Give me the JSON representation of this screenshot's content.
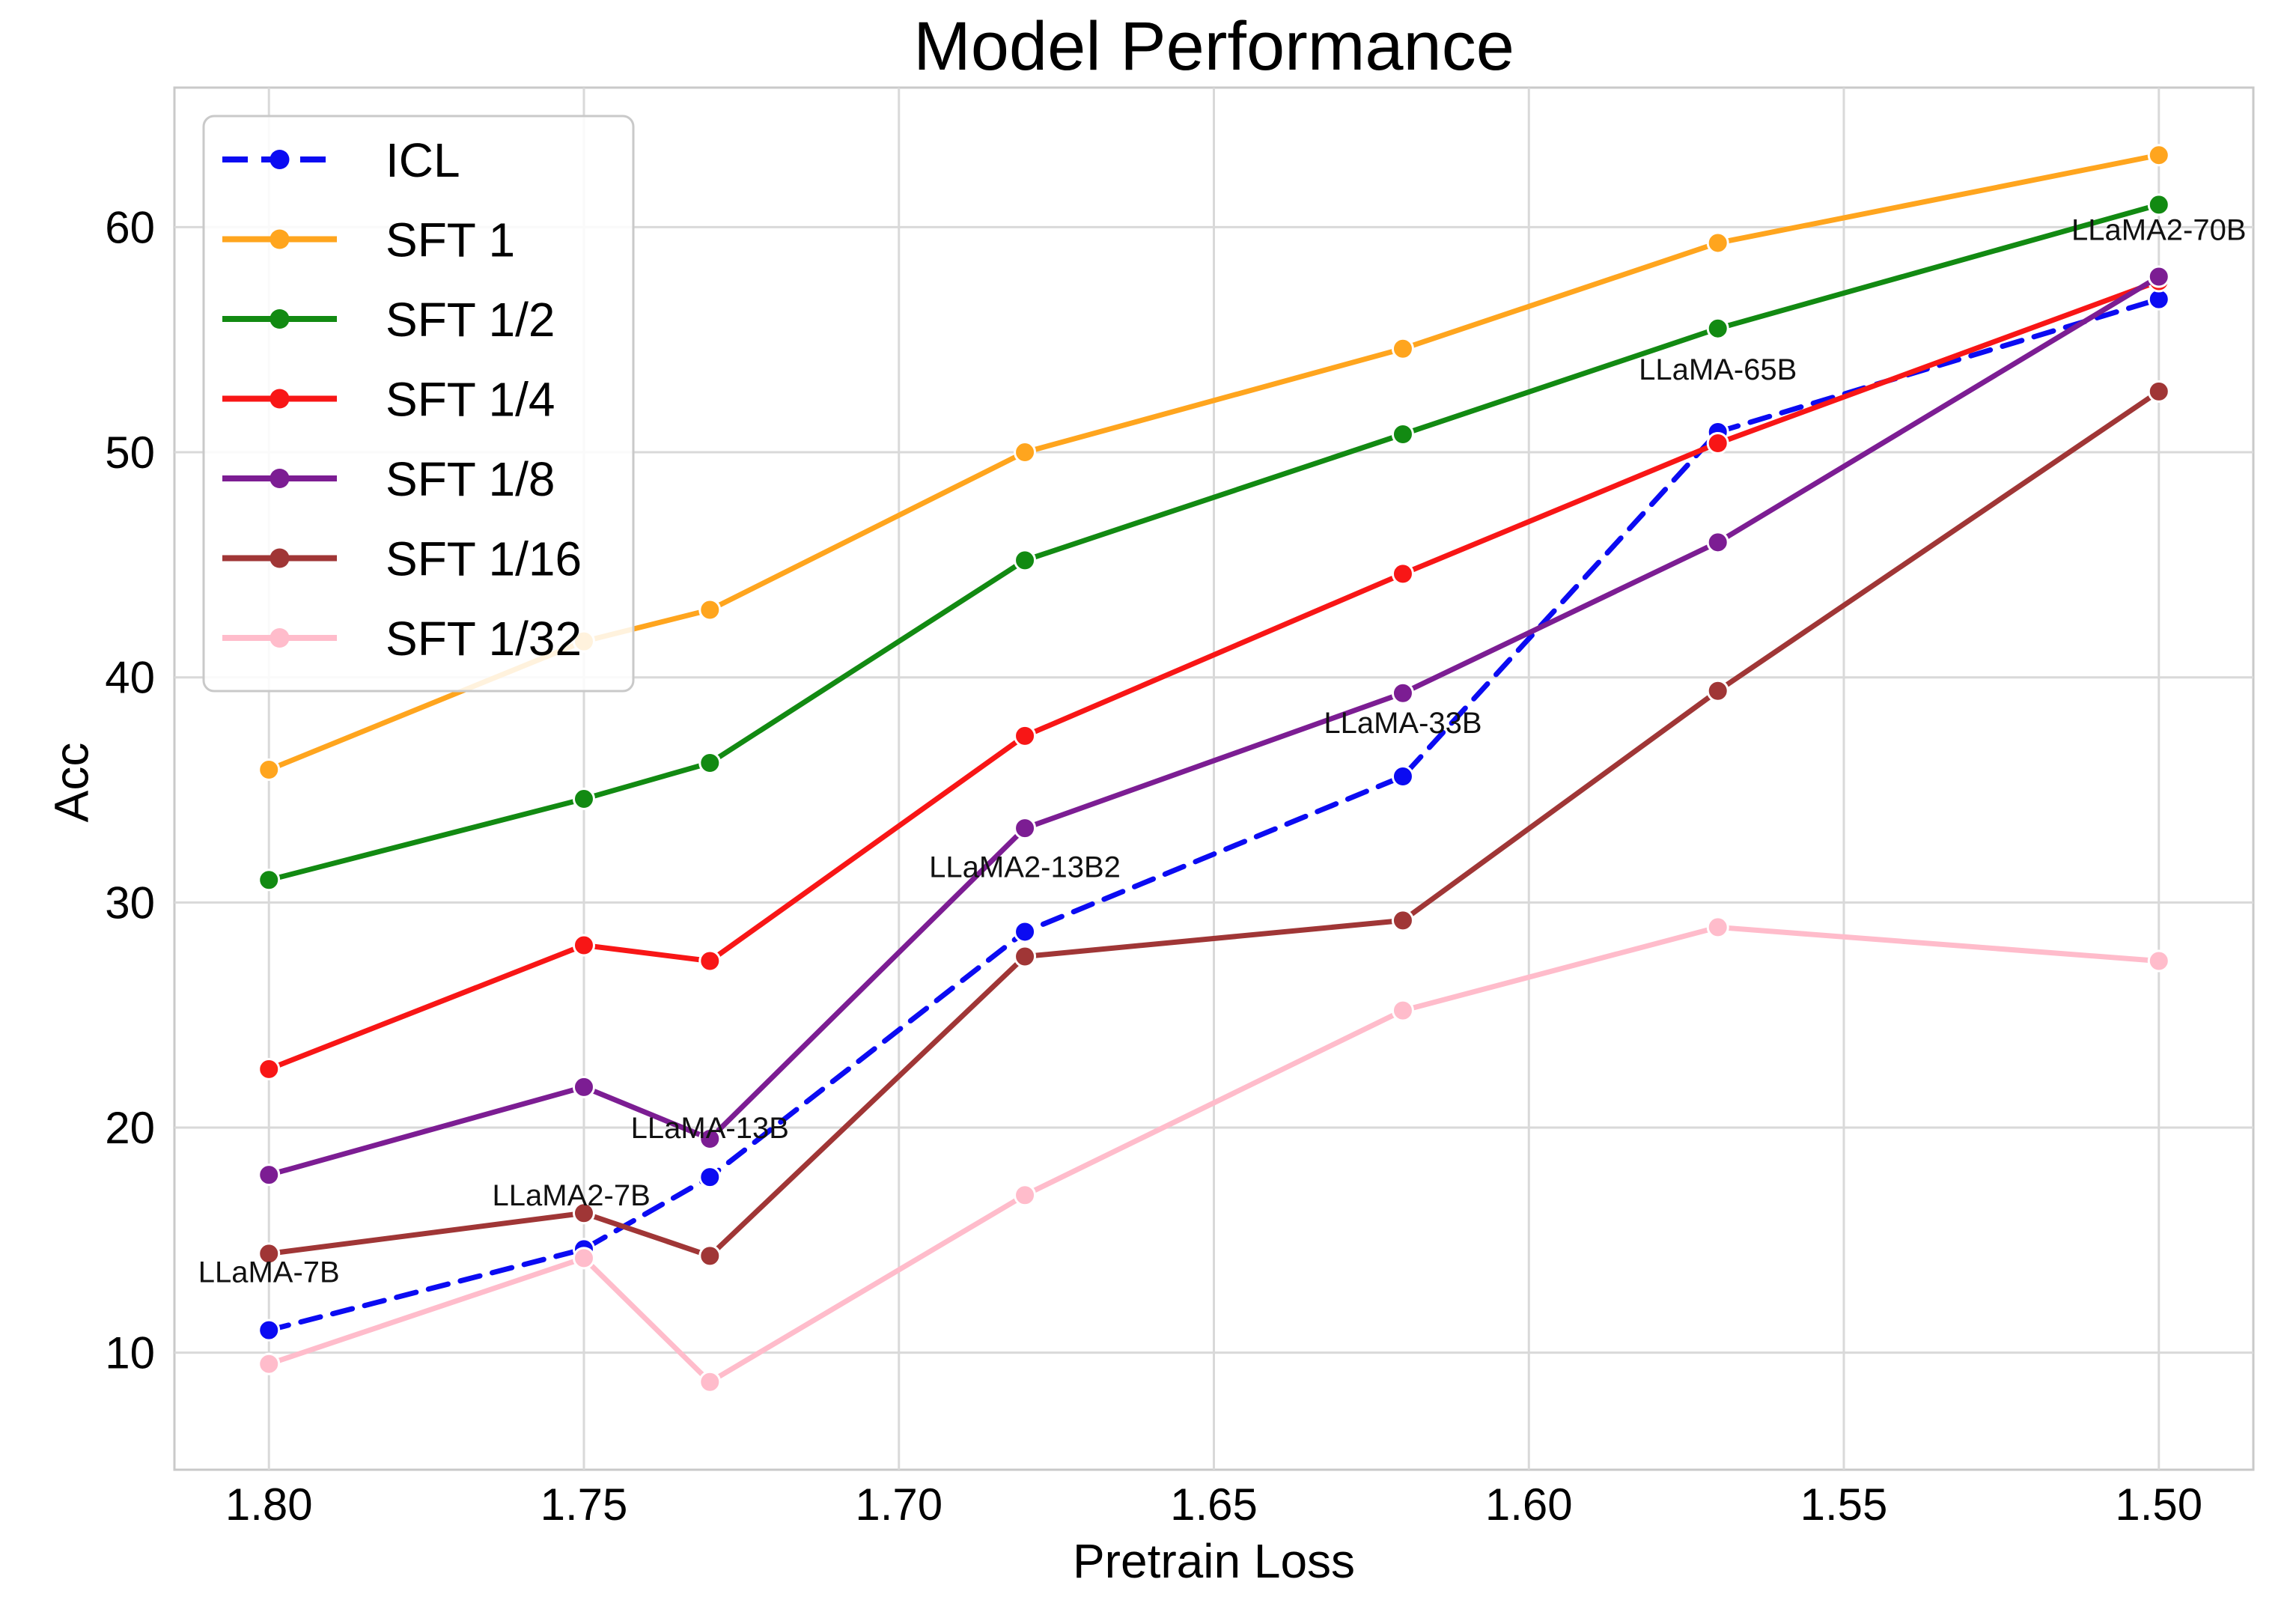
{
  "chart_data": {
    "type": "line",
    "title": "Model Performance",
    "xlabel": "Pretrain Loss",
    "ylabel": "Acc",
    "grid": true,
    "legend_position": "upper left",
    "x_axis": {
      "reversed": true,
      "domain": [
        1.815,
        1.485
      ],
      "tick_values": [
        1.8,
        1.75,
        1.7,
        1.65,
        1.6,
        1.55,
        1.5
      ],
      "tick_labels": [
        "1.80",
        "1.75",
        "1.70",
        "1.65",
        "1.60",
        "1.55",
        "1.50"
      ]
    },
    "y_axis": {
      "domain": [
        4.8,
        66.2
      ],
      "tick_values": [
        10,
        20,
        30,
        40,
        50,
        60
      ],
      "tick_labels": [
        "10",
        "20",
        "30",
        "40",
        "50",
        "60"
      ]
    },
    "x": [
      1.8,
      1.75,
      1.73,
      1.68,
      1.62,
      1.57,
      1.5
    ],
    "series": [
      {
        "name": "ICL",
        "color": "#0b0bf2",
        "line_style": "dashed",
        "values": [
          11.0,
          14.6,
          17.8,
          28.7,
          35.6,
          50.9,
          56.8
        ]
      },
      {
        "name": "SFT 1",
        "color": "#ffa51e",
        "line_style": "solid",
        "values": [
          35.9,
          41.6,
          43.0,
          50.0,
          54.6,
          59.3,
          63.2
        ]
      },
      {
        "name": "SFT 1/2",
        "color": "#128a12",
        "line_style": "solid",
        "values": [
          31.0,
          34.6,
          36.2,
          45.2,
          50.8,
          55.5,
          61.0
        ]
      },
      {
        "name": "SFT 1/4",
        "color": "#f81616",
        "line_style": "solid",
        "values": [
          22.6,
          28.1,
          27.4,
          37.4,
          44.6,
          50.4,
          57.6
        ]
      },
      {
        "name": "SFT 1/8",
        "color": "#7c1d93",
        "line_style": "solid",
        "values": [
          17.9,
          21.8,
          19.5,
          33.3,
          39.3,
          46.0,
          57.8
        ]
      },
      {
        "name": "SFT 1/16",
        "color": "#a03636",
        "line_style": "solid",
        "values": [
          14.4,
          16.2,
          14.3,
          27.6,
          29.2,
          39.4,
          52.7
        ]
      },
      {
        "name": "SFT 1/32",
        "color": "#ffbccb",
        "line_style": "solid",
        "values": [
          9.5,
          14.2,
          8.7,
          17.0,
          25.2,
          28.9,
          27.4
        ]
      }
    ],
    "annotations": [
      {
        "text": "LLaMA-7B",
        "x": 1.8,
        "y": 13.6
      },
      {
        "text": "LLaMA2-7B",
        "x": 1.752,
        "y": 17.0
      },
      {
        "text": "LLaMA-13B",
        "x": 1.73,
        "y": 20.0
      },
      {
        "text": "LLaMA2-13B2",
        "x": 1.68,
        "y": 31.6
      },
      {
        "text": "LLaMA-33B",
        "x": 1.62,
        "y": 38.0
      },
      {
        "text": "LLaMA-65B",
        "x": 1.57,
        "y": 53.7
      },
      {
        "text": "LLaMA2-70B",
        "x": 1.5,
        "y": 59.9
      }
    ],
    "style": {
      "grid_color": "#d9d9d9",
      "spine_color": "#c9c9c9",
      "text_color": "#000000",
      "legend_bg": "rgba(255,255,255,0.85)"
    }
  }
}
